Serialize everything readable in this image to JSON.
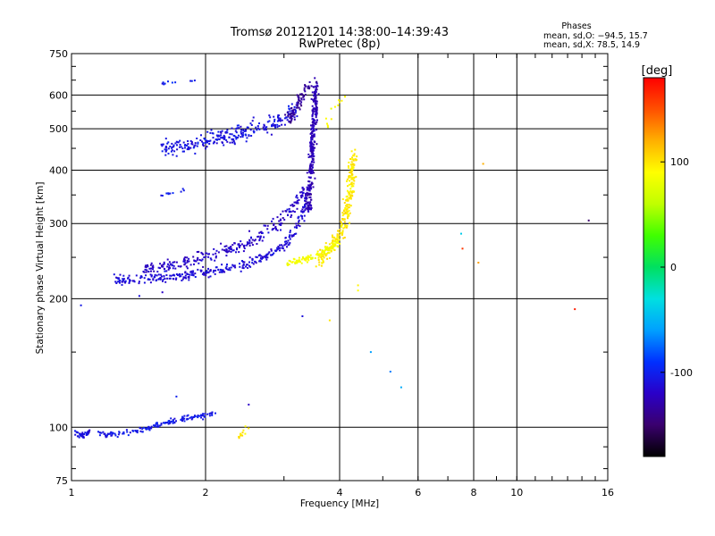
{
  "chart_data": {
    "type": "scatter",
    "title": "Tromsø 20121201 14:38:00–14:39:43",
    "subtitle": "RwPretec (8p)",
    "xlabel": "Frequency [MHz]",
    "ylabel": "Stationary phase Virtual Height [km]",
    "xscale": "log",
    "yscale": "log",
    "xlim": [
      1,
      16
    ],
    "ylim": [
      75,
      750
    ],
    "grid": true,
    "x_ticks": [
      1,
      2,
      4,
      6,
      8,
      10,
      16
    ],
    "y_ticks": [
      75,
      100,
      200,
      300,
      400,
      500,
      600,
      750
    ],
    "stats": {
      "title": "Phases",
      "line_o": "mean, sd,O: −94.5, 15.7",
      "line_x": "mean, sd,X:  78.5, 14.9"
    },
    "colorbar": {
      "label": "[deg]",
      "range": [
        -180,
        180
      ],
      "ticks": [
        100,
        0,
        -100
      ],
      "colormap": "rainbow",
      "colors": [
        "#000000",
        "#3a006e",
        "#2a00c8",
        "#0030ff",
        "#00a0ff",
        "#00e0e0",
        "#00e060",
        "#40ff00",
        "#c0ff00",
        "#ffff00",
        "#ffb000",
        "#ff5000",
        "#ff0000"
      ]
    },
    "series": [
      {
        "kind": "trace",
        "x": [
          1.02,
          1.06,
          1.1
        ],
        "y": [
          97,
          95,
          98
        ],
        "phase": -110,
        "count": 40,
        "spread": 0.012
      },
      {
        "kind": "trace",
        "x": [
          1.15,
          1.35,
          1.55,
          1.8,
          2.1
        ],
        "y": [
          96,
          97,
          101,
          105,
          108
        ],
        "phase": -105,
        "count": 150,
        "spread": 0.013
      },
      {
        "kind": "trace",
        "x": [
          1.25,
          1.45,
          1.7,
          2.05,
          2.45,
          2.8,
          3.05,
          3.25,
          3.38
        ],
        "y": [
          221,
          223,
          225,
          231,
          240,
          254,
          272,
          300,
          345
        ],
        "phase": -112,
        "count": 320,
        "spread": 0.022
      },
      {
        "kind": "trace",
        "x": [
          1.45,
          1.7,
          2.05,
          2.45,
          2.8,
          3.1,
          3.35
        ],
        "y": [
          233,
          240,
          252,
          268,
          292,
          320,
          365
        ],
        "phase": -118,
        "count": 260,
        "spread": 0.03
      },
      {
        "kind": "trace",
        "x": [
          3.4,
          3.45,
          3.48,
          3.52,
          3.55
        ],
        "y": [
          320,
          400,
          480,
          560,
          630
        ],
        "phase": -125,
        "count": 300,
        "spread": 0.025
      },
      {
        "kind": "trace",
        "x": [
          1.6,
          1.9,
          2.2,
          2.5,
          2.8,
          3.0,
          3.2
        ],
        "y": [
          448,
          462,
          478,
          495,
          515,
          530,
          560
        ],
        "phase": -108,
        "count": 270,
        "spread": 0.04
      },
      {
        "kind": "trace",
        "x": [
          3.05,
          3.2,
          3.3,
          3.4,
          3.5
        ],
        "y": [
          520,
          560,
          600,
          630,
          645
        ],
        "phase": -135,
        "count": 80,
        "spread": 0.03
      },
      {
        "kind": "trace",
        "x": [
          3.6,
          3.75,
          3.9,
          4.05,
          4.15,
          4.25,
          4.3
        ],
        "y": [
          245,
          258,
          270,
          290,
          320,
          380,
          440
        ],
        "phase": 98,
        "count": 240,
        "spread": 0.035
      },
      {
        "kind": "trace",
        "x": [
          3.05,
          3.3,
          3.55,
          3.8,
          4.0
        ],
        "y": [
          243,
          247,
          253,
          262,
          272
        ],
        "phase": 85,
        "count": 110,
        "spread": 0.015
      },
      {
        "kind": "trace",
        "x": [
          3.7,
          3.9,
          4.1
        ],
        "y": [
          500,
          550,
          590
        ],
        "phase": 90,
        "count": 12,
        "spread": 0.03
      },
      {
        "kind": "trace",
        "x": [
          2.35,
          2.5
        ],
        "y": [
          95,
          100
        ],
        "phase": 100,
        "count": 12,
        "spread": 0.015
      },
      {
        "kind": "trace",
        "x": [
          1.6,
          1.9
        ],
        "y": [
          640,
          648
        ],
        "phase": -100,
        "count": 10,
        "spread": 0.006
      },
      {
        "kind": "trace",
        "x": [
          1.5,
          1.8
        ],
        "y": [
          345,
          360
        ],
        "phase": -105,
        "count": 10,
        "spread": 0.01
      },
      {
        "kind": "points",
        "x": [
          1.42,
          1.05,
          1.6,
          1.62,
          1.72,
          2.5,
          3.3,
          3.8,
          4.4,
          4.4,
          4.7,
          5.2,
          5.5,
          7.5,
          7.55,
          8.2,
          8.4,
          13.5,
          14.5
        ],
        "y": [
          203,
          193,
          207,
          232,
          118,
          113,
          182,
          178,
          209,
          215,
          150,
          135,
          124,
          284,
          262,
          243,
          414,
          189,
          305
        ],
        "phase": [
          -110,
          -105,
          -120,
          -100,
          -100,
          -120,
          -110,
          100,
          90,
          95,
          -60,
          -70,
          -55,
          -40,
          160,
          125,
          120,
          170,
          -150
        ]
      }
    ]
  }
}
